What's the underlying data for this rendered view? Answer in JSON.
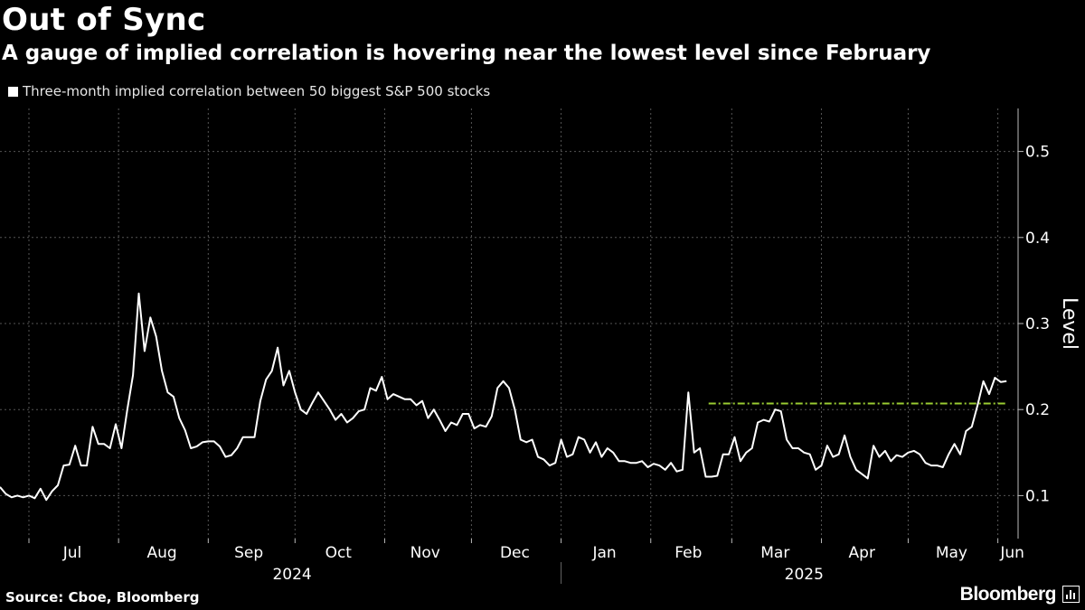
{
  "header": {
    "title": "Out of Sync",
    "subtitle": "A gauge of implied correlation is hovering near the lowest level since February"
  },
  "legend": {
    "label": "Three-month implied correlation between 50 biggest S&P 500 stocks",
    "color": "#ffffff"
  },
  "footer": {
    "source": "Source: Cboe, Bloomberg",
    "brand": "Bloomberg"
  },
  "colors": {
    "background": "#000000",
    "line": "#ffffff",
    "threshold": "#9acd32",
    "grid": "#555555"
  },
  "chart_data": {
    "type": "line",
    "title": "Out of Sync",
    "subtitle": "A gauge of implied correlation is hovering near the lowest level since February",
    "ylabel": "Level",
    "ylim": [
      0.05,
      0.55
    ],
    "yticks": [
      0.1,
      0.2,
      0.3,
      0.4,
      0.5
    ],
    "y_tick_labels": [
      "0.1",
      "0.2",
      "0.3",
      "0.4",
      "0.5"
    ],
    "y_axis_side": "right",
    "xlim": [
      "2024-06-21",
      "2025-06-08"
    ],
    "x_month_labels": [
      {
        "label": "Jul",
        "date": "2024-07-16"
      },
      {
        "label": "Aug",
        "date": "2024-08-16"
      },
      {
        "label": "Sep",
        "date": "2024-09-15"
      },
      {
        "label": "Oct",
        "date": "2024-10-16"
      },
      {
        "label": "Nov",
        "date": "2024-11-15"
      },
      {
        "label": "Dec",
        "date": "2024-12-16"
      },
      {
        "label": "Jan",
        "date": "2025-01-16"
      },
      {
        "label": "Feb",
        "date": "2025-02-14"
      },
      {
        "label": "Mar",
        "date": "2025-03-16"
      },
      {
        "label": "Apr",
        "date": "2025-04-15"
      },
      {
        "label": "May",
        "date": "2025-05-16"
      },
      {
        "label": "Jun",
        "date": "2025-06-06"
      }
    ],
    "x_year_labels": [
      {
        "label": "2024",
        "date": "2024-09-30"
      },
      {
        "label": "2025",
        "date": "2025-03-26"
      }
    ],
    "grid": true,
    "legend_position": "top-left",
    "series": [
      {
        "name": "Three-month implied correlation between 50 biggest S&P 500 stocks",
        "color": "#ffffff",
        "points": [
          [
            "2024-06-21",
            0.11
          ],
          [
            "2024-06-23",
            0.102
          ],
          [
            "2024-06-25",
            0.098
          ],
          [
            "2024-06-27",
            0.1
          ],
          [
            "2024-06-29",
            0.098
          ],
          [
            "2024-07-01",
            0.1
          ],
          [
            "2024-07-03",
            0.097
          ],
          [
            "2024-07-05",
            0.108
          ],
          [
            "2024-07-07",
            0.095
          ],
          [
            "2024-07-09",
            0.105
          ],
          [
            "2024-07-11",
            0.112
          ],
          [
            "2024-07-13",
            0.135
          ],
          [
            "2024-07-15",
            0.136
          ],
          [
            "2024-07-17",
            0.158
          ],
          [
            "2024-07-19",
            0.135
          ],
          [
            "2024-07-21",
            0.135
          ],
          [
            "2024-07-23",
            0.18
          ],
          [
            "2024-07-25",
            0.16
          ],
          [
            "2024-07-27",
            0.16
          ],
          [
            "2024-07-29",
            0.155
          ],
          [
            "2024-07-31",
            0.183
          ],
          [
            "2024-08-02",
            0.155
          ],
          [
            "2024-08-04",
            0.2
          ],
          [
            "2024-08-06",
            0.24
          ],
          [
            "2024-08-08",
            0.335
          ],
          [
            "2024-08-10",
            0.268
          ],
          [
            "2024-08-12",
            0.307
          ],
          [
            "2024-08-14",
            0.285
          ],
          [
            "2024-08-16",
            0.245
          ],
          [
            "2024-08-18",
            0.22
          ],
          [
            "2024-08-20",
            0.215
          ],
          [
            "2024-08-22",
            0.19
          ],
          [
            "2024-08-24",
            0.176
          ],
          [
            "2024-08-26",
            0.155
          ],
          [
            "2024-08-28",
            0.157
          ],
          [
            "2024-08-30",
            0.162
          ],
          [
            "2024-09-01",
            0.163
          ],
          [
            "2024-09-03",
            0.163
          ],
          [
            "2024-09-05",
            0.157
          ],
          [
            "2024-09-07",
            0.145
          ],
          [
            "2024-09-09",
            0.147
          ],
          [
            "2024-09-11",
            0.155
          ],
          [
            "2024-09-13",
            0.168
          ],
          [
            "2024-09-15",
            0.168
          ],
          [
            "2024-09-17",
            0.168
          ],
          [
            "2024-09-19",
            0.21
          ],
          [
            "2024-09-21",
            0.235
          ],
          [
            "2024-09-23",
            0.245
          ],
          [
            "2024-09-25",
            0.272
          ],
          [
            "2024-09-27",
            0.228
          ],
          [
            "2024-09-29",
            0.245
          ],
          [
            "2024-10-01",
            0.22
          ],
          [
            "2024-10-03",
            0.2
          ],
          [
            "2024-10-05",
            0.195
          ],
          [
            "2024-10-07",
            0.208
          ],
          [
            "2024-10-09",
            0.22
          ],
          [
            "2024-10-11",
            0.21
          ],
          [
            "2024-10-13",
            0.2
          ],
          [
            "2024-10-15",
            0.188
          ],
          [
            "2024-10-17",
            0.195
          ],
          [
            "2024-10-19",
            0.185
          ],
          [
            "2024-10-21",
            0.19
          ],
          [
            "2024-10-23",
            0.198
          ],
          [
            "2024-10-25",
            0.2
          ],
          [
            "2024-10-27",
            0.225
          ],
          [
            "2024-10-29",
            0.222
          ],
          [
            "2024-10-31",
            0.238
          ],
          [
            "2024-11-02",
            0.212
          ],
          [
            "2024-11-04",
            0.218
          ],
          [
            "2024-11-06",
            0.215
          ],
          [
            "2024-11-08",
            0.212
          ],
          [
            "2024-11-10",
            0.212
          ],
          [
            "2024-11-12",
            0.205
          ],
          [
            "2024-11-14",
            0.21
          ],
          [
            "2024-11-16",
            0.19
          ],
          [
            "2024-11-18",
            0.2
          ],
          [
            "2024-11-20",
            0.188
          ],
          [
            "2024-11-22",
            0.175
          ],
          [
            "2024-11-24",
            0.185
          ],
          [
            "2024-11-26",
            0.182
          ],
          [
            "2024-11-28",
            0.195
          ],
          [
            "2024-11-30",
            0.195
          ],
          [
            "2024-12-02",
            0.178
          ],
          [
            "2024-12-04",
            0.182
          ],
          [
            "2024-12-06",
            0.18
          ],
          [
            "2024-12-08",
            0.192
          ],
          [
            "2024-12-10",
            0.225
          ],
          [
            "2024-12-12",
            0.233
          ],
          [
            "2024-12-14",
            0.225
          ],
          [
            "2024-12-16",
            0.2
          ],
          [
            "2024-12-18",
            0.165
          ],
          [
            "2024-12-20",
            0.162
          ],
          [
            "2024-12-22",
            0.165
          ],
          [
            "2024-12-24",
            0.145
          ],
          [
            "2024-12-26",
            0.142
          ],
          [
            "2024-12-28",
            0.135
          ],
          [
            "2024-12-30",
            0.138
          ],
          [
            "2025-01-01",
            0.165
          ],
          [
            "2025-01-03",
            0.145
          ],
          [
            "2025-01-05",
            0.148
          ],
          [
            "2025-01-07",
            0.168
          ],
          [
            "2025-01-09",
            0.165
          ],
          [
            "2025-01-11",
            0.15
          ],
          [
            "2025-01-13",
            0.162
          ],
          [
            "2025-01-15",
            0.145
          ],
          [
            "2025-01-17",
            0.155
          ],
          [
            "2025-01-19",
            0.15
          ],
          [
            "2025-01-21",
            0.14
          ],
          [
            "2025-01-23",
            0.14
          ],
          [
            "2025-01-25",
            0.138
          ],
          [
            "2025-01-27",
            0.138
          ],
          [
            "2025-01-29",
            0.14
          ],
          [
            "2025-01-31",
            0.133
          ],
          [
            "2025-02-02",
            0.137
          ],
          [
            "2025-02-04",
            0.135
          ],
          [
            "2025-02-06",
            0.13
          ],
          [
            "2025-02-08",
            0.138
          ],
          [
            "2025-02-10",
            0.128
          ],
          [
            "2025-02-12",
            0.13
          ],
          [
            "2025-02-14",
            0.22
          ],
          [
            "2025-02-16",
            0.15
          ],
          [
            "2025-02-18",
            0.155
          ],
          [
            "2025-02-20",
            0.122
          ],
          [
            "2025-02-22",
            0.122
          ],
          [
            "2025-02-24",
            0.123
          ],
          [
            "2025-02-26",
            0.148
          ],
          [
            "2025-02-28",
            0.148
          ],
          [
            "2025-03-02",
            0.168
          ],
          [
            "2025-03-04",
            0.14
          ],
          [
            "2025-03-06",
            0.15
          ],
          [
            "2025-03-08",
            0.155
          ],
          [
            "2025-03-10",
            0.185
          ],
          [
            "2025-03-12",
            0.188
          ],
          [
            "2025-03-14",
            0.186
          ],
          [
            "2025-03-16",
            0.2
          ],
          [
            "2025-03-18",
            0.198
          ],
          [
            "2025-03-20",
            0.165
          ],
          [
            "2025-03-22",
            0.155
          ],
          [
            "2025-03-24",
            0.155
          ],
          [
            "2025-03-26",
            0.15
          ],
          [
            "2025-03-28",
            0.148
          ],
          [
            "2025-03-30",
            0.13
          ],
          [
            "2025-04-01",
            0.135
          ],
          [
            "2025-04-03",
            0.158
          ],
          [
            "2025-04-05",
            0.145
          ],
          [
            "2025-04-07",
            0.148
          ],
          [
            "2025-04-09",
            0.17
          ],
          [
            "2025-04-11",
            0.145
          ],
          [
            "2025-04-13",
            0.13
          ],
          [
            "2025-04-15",
            0.125
          ],
          [
            "2025-04-17",
            0.12
          ],
          [
            "2025-04-19",
            0.158
          ],
          [
            "2025-04-21",
            0.145
          ],
          [
            "2025-04-23",
            0.152
          ],
          [
            "2025-04-25",
            0.14
          ],
          [
            "2025-04-27",
            0.147
          ],
          [
            "2025-04-29",
            0.145
          ],
          [
            "2025-05-01",
            0.15
          ],
          [
            "2025-05-03",
            0.152
          ],
          [
            "2025-05-05",
            0.148
          ],
          [
            "2025-05-07",
            0.138
          ],
          [
            "2025-05-09",
            0.135
          ],
          [
            "2025-05-11",
            0.135
          ],
          [
            "2025-05-13",
            0.133
          ],
          [
            "2025-05-15",
            0.148
          ],
          [
            "2025-05-17",
            0.16
          ],
          [
            "2025-05-19",
            0.148
          ],
          [
            "2025-05-21",
            0.175
          ],
          [
            "2025-05-23",
            0.18
          ],
          [
            "2025-05-25",
            0.205
          ],
          [
            "2025-05-27",
            0.233
          ],
          [
            "2025-05-29",
            0.218
          ],
          [
            "2025-05-31",
            0.237
          ],
          [
            "2025-06-02",
            0.232
          ],
          [
            "2025-06-04",
            0.233
          ]
        ]
      }
    ],
    "reference_line": {
      "y": 0.207,
      "start": "2025-02-21",
      "end": "2025-06-04",
      "style": "dash-dot",
      "color": "#9acd32"
    }
  }
}
